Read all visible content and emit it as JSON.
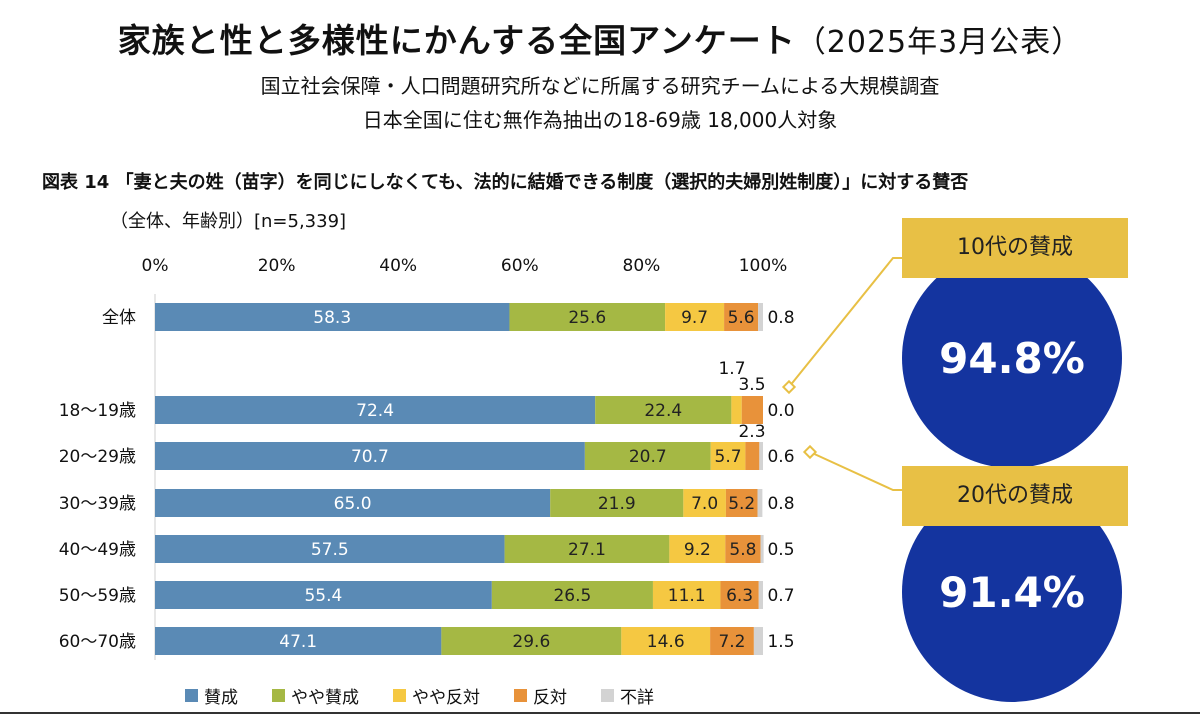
{
  "header": {
    "title": "家族と性と多様性にかんする全国アンケート",
    "title_paren": "（2025年3月公表）",
    "subtitle1": "国立社会保障・人口問題研究所などに所属する研究チームによる大規模調査",
    "subtitle2": "日本全国に住む無作為抽出の18-69歳 18,000人対象"
  },
  "figure": {
    "title": "図表 14 「妻と夫の姓（苗字）を同じにしなくても、法的に結婚できる制度（選択的夫婦別姓制度）」に対する賛否",
    "subtitle": "（全体、年齢別）[n=5,339]"
  },
  "callouts": [
    {
      "label": "10代の賛成",
      "value": "94.8%"
    },
    {
      "label": "20代の賛成",
      "value": "91.4%"
    }
  ],
  "colors": {
    "賛成": "#5a8ab5",
    "やや賛成": "#a5b844",
    "やや反対": "#f5c842",
    "反対": "#e8923a",
    "不詳": "#d3d3d3",
    "callout_box": "#e8c045",
    "circle": "#14349f"
  },
  "chart_data": {
    "type": "bar",
    "orientation": "horizontal",
    "stacked": true,
    "xlim": [
      0,
      100
    ],
    "x_ticks": [
      "0%",
      "20%",
      "40%",
      "60%",
      "80%",
      "100%"
    ],
    "categories": [
      "全体",
      "18〜19歳",
      "20〜29歳",
      "30〜39歳",
      "40〜49歳",
      "50〜59歳",
      "60〜70歳"
    ],
    "series": [
      {
        "name": "賛成",
        "values": [
          58.3,
          72.4,
          70.7,
          65.0,
          57.5,
          55.4,
          47.1
        ]
      },
      {
        "name": "やや賛成",
        "values": [
          25.6,
          22.4,
          20.7,
          21.9,
          27.1,
          26.5,
          29.6
        ]
      },
      {
        "name": "やや反対",
        "values": [
          9.7,
          1.7,
          5.7,
          7.0,
          9.2,
          11.1,
          14.6
        ]
      },
      {
        "name": "反対",
        "values": [
          5.6,
          3.5,
          2.3,
          5.2,
          5.8,
          6.3,
          7.2
        ]
      },
      {
        "name": "不詳",
        "values": [
          0.8,
          0.0,
          0.6,
          0.8,
          0.5,
          0.7,
          1.5
        ]
      }
    ],
    "value_labels": [
      [
        "58.3",
        "25.6",
        "9.7",
        "5.6",
        "0.8"
      ],
      [
        "72.4",
        "22.4",
        "1.7",
        "3.5",
        "0.0"
      ],
      [
        "70.7",
        "20.7",
        "5.7",
        "2.3",
        "0.6"
      ],
      [
        "65.0",
        "21.9",
        "7.0",
        "5.2",
        "0.8"
      ],
      [
        "57.5",
        "27.1",
        "9.2",
        "5.8",
        "0.5"
      ],
      [
        "55.4",
        "26.5",
        "11.1",
        "6.3",
        "0.7"
      ],
      [
        "47.1",
        "29.6",
        "14.6",
        "7.2",
        "1.5"
      ]
    ],
    "legend": [
      "賛成",
      "やや賛成",
      "やや反対",
      "反対",
      "不詳"
    ],
    "legend_position": "bottom"
  }
}
